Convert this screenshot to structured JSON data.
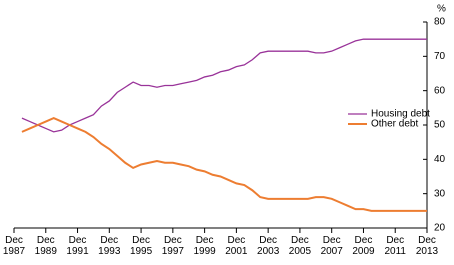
{
  "chart_data": {
    "type": "line",
    "y_label": "%",
    "x": [
      1988.42,
      1988.92,
      1989.42,
      1989.92,
      1990.42,
      1990.92,
      1991.42,
      1991.92,
      1992.42,
      1992.92,
      1993.42,
      1993.92,
      1994.42,
      1994.92,
      1995.42,
      1995.92,
      1996.42,
      1996.92,
      1997.42,
      1997.92,
      1998.42,
      1998.92,
      1999.42,
      1999.92,
      2000.42,
      2000.92,
      2001.42,
      2001.92,
      2002.42,
      2002.92,
      2003.42,
      2003.92,
      2004.42,
      2004.92,
      2005.42,
      2005.92,
      2006.42,
      2006.92,
      2007.42,
      2007.92,
      2008.42,
      2008.92,
      2009.42,
      2009.92,
      2010.42,
      2010.92,
      2011.42,
      2011.92,
      2012.42,
      2012.92,
      2013.42,
      2013.92
    ],
    "series": [
      {
        "name": "Housing debt",
        "color": "#993399",
        "values": [
          52,
          51,
          50,
          49,
          48,
          48.5,
          50,
          51,
          52,
          53,
          55.5,
          57,
          59.5,
          61,
          62.5,
          61.5,
          61.5,
          61,
          61.5,
          61.5,
          62,
          62.5,
          63,
          64,
          64.5,
          65.5,
          66,
          67,
          67.5,
          69,
          71,
          71.5,
          71.5,
          71.5,
          71.5,
          71.5,
          71.5,
          71,
          71,
          71.5,
          72.5,
          73.5,
          74.5,
          75,
          75,
          75,
          75,
          75,
          75,
          75,
          75,
          75
        ]
      },
      {
        "name": "Other debt",
        "color": "#ed7d31",
        "values": [
          48,
          49,
          50,
          51,
          52,
          51,
          50,
          49,
          48,
          46.5,
          44.5,
          43,
          41,
          39,
          37.5,
          38.5,
          39,
          39.5,
          39,
          39,
          38.5,
          38,
          37,
          36.5,
          35.5,
          35,
          34,
          33,
          32.5,
          31,
          29,
          28.5,
          28.5,
          28.5,
          28.5,
          28.5,
          28.5,
          29,
          29,
          28.5,
          27.5,
          26.5,
          25.5,
          25.5,
          25,
          25,
          25,
          25,
          25,
          25,
          25,
          25
        ]
      }
    ],
    "xlim": [
      1987.92,
      2013.92
    ],
    "xticks": [
      {
        "value": 1987.92,
        "label": "Dec 1987"
      },
      {
        "value": 1989.92,
        "label": "Dec 1989"
      },
      {
        "value": 1991.92,
        "label": "Dec 1991"
      },
      {
        "value": 1993.92,
        "label": "Dec 1993"
      },
      {
        "value": 1995.92,
        "label": "Dec 1995"
      },
      {
        "value": 1997.92,
        "label": "Dec 1997"
      },
      {
        "value": 1999.92,
        "label": "Dec 1999"
      },
      {
        "value": 2001.92,
        "label": "Dec 2001"
      },
      {
        "value": 2003.92,
        "label": "Dec 2003"
      },
      {
        "value": 2005.92,
        "label": "Dec 2005"
      },
      {
        "value": 2007.92,
        "label": "Dec 2007"
      },
      {
        "value": 2009.92,
        "label": "Dec 2009"
      },
      {
        "value": 2011.92,
        "label": "Dec 2011"
      },
      {
        "value": 2013.92,
        "label": "Dec 2013"
      }
    ],
    "ylim": [
      20,
      80
    ],
    "yticks": [
      20,
      30,
      40,
      50,
      60,
      70,
      80
    ]
  }
}
